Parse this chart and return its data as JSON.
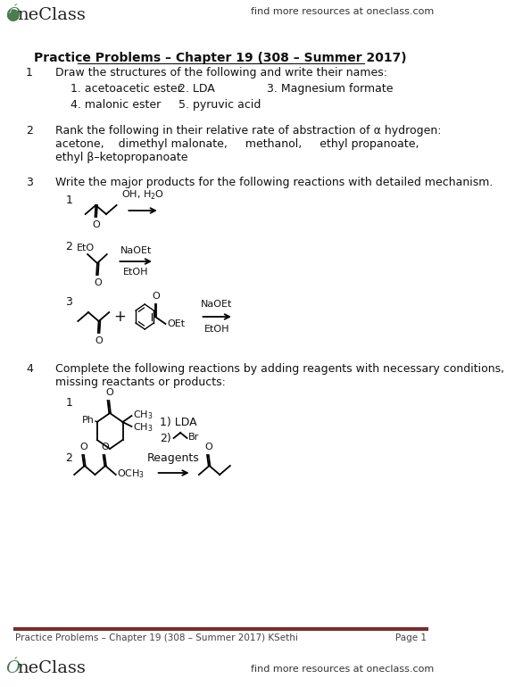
{
  "bg_color": "#ffffff",
  "header_right": "find more resources at oneclass.com",
  "title": "Practice Problems – Chapter 19 (308 – Summer 2017)",
  "footer_left": "Practice Problems – Chapter 19 (308 – Summer 2017) KSethi",
  "footer_right": "Page 1",
  "footer_right2": "find more resources at oneclass.com",
  "separator_color": "#7B2C2C",
  "oneclass_green": "#4a7c4e",
  "text_color": "#111111",
  "q1_number": "1",
  "q1_text": "Draw the structures of the following and write their names:",
  "q1_items_row1": [
    "1. acetoacetic ester",
    "2. LDA",
    "3. Magnesium formate"
  ],
  "q1_items_row2": [
    "4. malonic ester",
    "5. pyruvic acid"
  ],
  "q2_number": "2",
  "q2_line1": "Rank the following in their relative rate of abstraction of α hydrogen:",
  "q2_line2": "acetone,    dimethyl malonate,     methanol,     ethyl propanoate,",
  "q2_line3": "ethyl β–ketopropanoate",
  "q3_number": "3",
  "q3_text": "Write the major products for the following reactions with detailed mechanism.",
  "q4_number": "4",
  "q4_line1": "Complete the following reactions by adding reagents with necessary conditions,",
  "q4_line2": "missing reactants or products:"
}
